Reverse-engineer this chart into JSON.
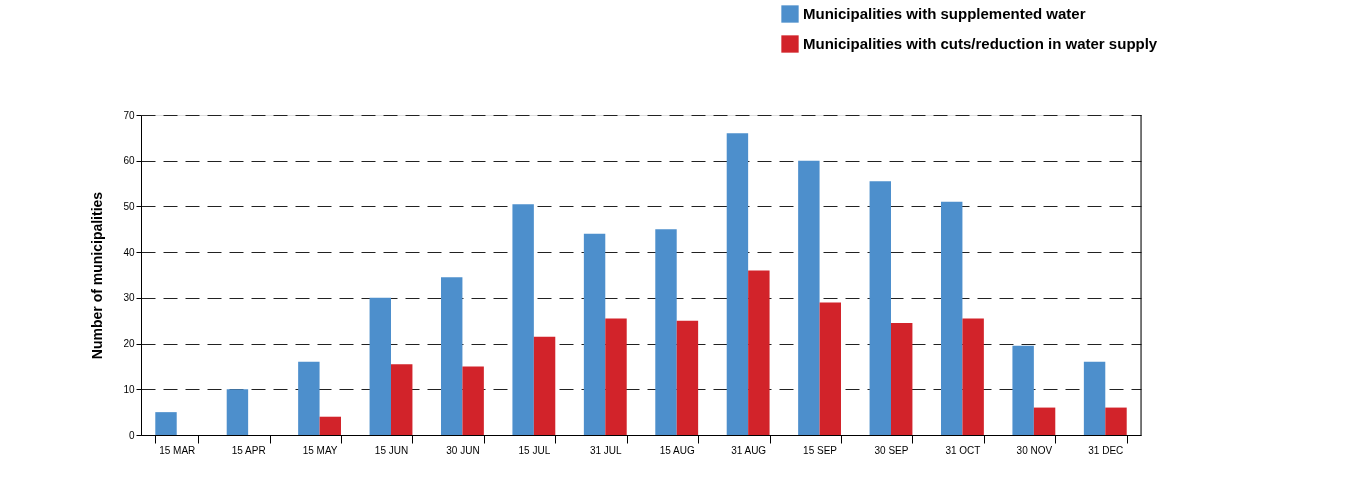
{
  "chart_data": {
    "type": "bar",
    "ylabel": "Number of municipalities",
    "categories": [
      "15 MAR",
      "15 APR",
      "15 MAY",
      "15 JUN",
      "30 JUN",
      "15 JUL",
      "31 JUL",
      "15 AUG",
      "31 AUG",
      "15 SEP",
      "30 SEP",
      "31 OCT",
      "30 NOV",
      "31 DEC"
    ],
    "series": [
      {
        "name": "Municipalities with supplemented water",
        "color": "#4d8fcc",
        "values": [
          5,
          10,
          16,
          30,
          34.5,
          50.5,
          44,
          45,
          66,
          60,
          55.5,
          51,
          19.5,
          16
        ]
      },
      {
        "name": "Municipalities with cuts/reduction in water supply",
        "color": "#d2232a",
        "values": [
          null,
          null,
          4,
          15.5,
          15,
          21.5,
          25.5,
          25,
          36,
          29,
          24.5,
          25.5,
          6,
          6
        ]
      }
    ],
    "ylim": [
      0,
      70
    ],
    "yticks": [
      0,
      10,
      20,
      30,
      40,
      50,
      60,
      70
    ],
    "grid": "y",
    "legend": "top right"
  }
}
